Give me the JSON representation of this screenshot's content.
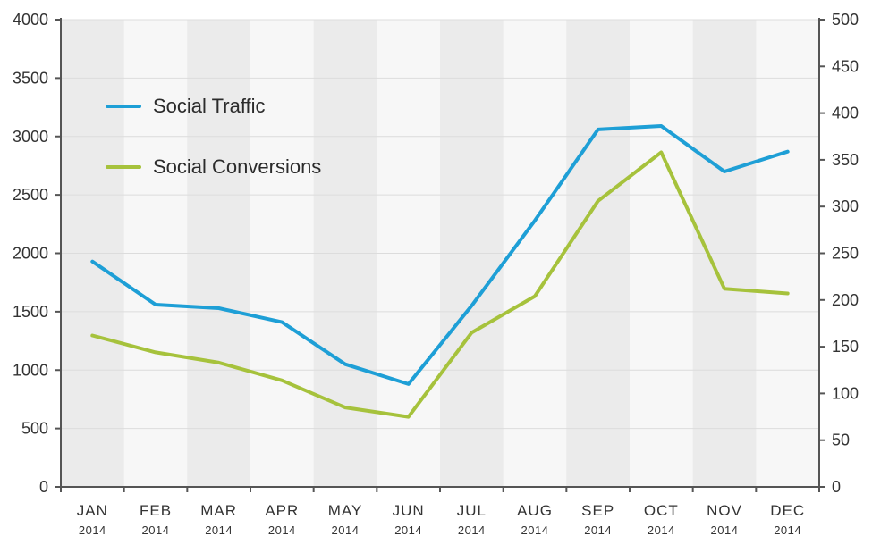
{
  "chart_data": {
    "type": "line",
    "categories": [
      "JAN",
      "FEB",
      "MAR",
      "APR",
      "MAY",
      "JUN",
      "JUL",
      "AUG",
      "SEP",
      "OCT",
      "NOV",
      "DEC"
    ],
    "category_years": [
      "2014",
      "2014",
      "2014",
      "2014",
      "2014",
      "2014",
      "2014",
      "2014",
      "2014",
      "2014",
      "2014",
      "2014"
    ],
    "y_left": {
      "ylim": [
        0,
        4000
      ],
      "ticks": [
        "0",
        "500",
        "1000",
        "1500",
        "2000",
        "2500",
        "3000",
        "3500",
        "4000"
      ]
    },
    "y_right": {
      "ylim": [
        0,
        500
      ],
      "ticks": [
        "0",
        "50",
        "100",
        "150",
        "200",
        "250",
        "300",
        "350",
        "400",
        "450",
        "500"
      ]
    },
    "series": [
      {
        "name": "Social Traffic",
        "axis": "left",
        "color": "#1e9fd6",
        "values": [
          1930,
          1560,
          1530,
          1410,
          1050,
          880,
          1550,
          2280,
          3060,
          3090,
          2700,
          2870
        ]
      },
      {
        "name": "Social Conversions",
        "axis": "right",
        "color": "#a6c23c",
        "values": [
          162,
          144,
          133,
          114,
          85,
          75,
          165,
          204,
          306,
          358,
          212,
          207
        ]
      }
    ],
    "legend_position": "top-left",
    "grid": true,
    "band_colors": [
      "#ebebeb",
      "#f7f7f7"
    ]
  }
}
